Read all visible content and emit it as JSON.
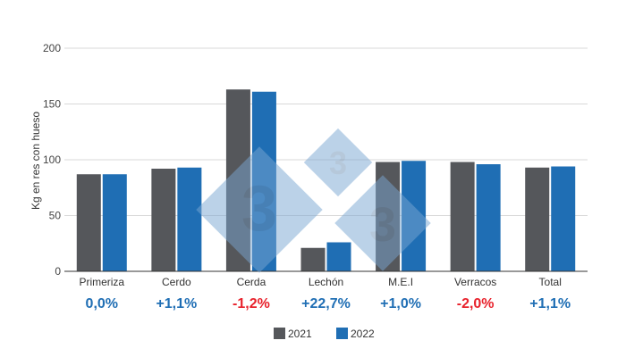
{
  "chart_data": {
    "type": "bar",
    "title": "",
    "xlabel": "",
    "ylabel": "Kg en res con hueso",
    "ylim": [
      0,
      200
    ],
    "yticks": [
      0,
      50,
      100,
      150,
      200
    ],
    "grid": true,
    "legend_position": "bottom",
    "categories": [
      "Primeriza",
      "Cerdo",
      "Cerda",
      "Lechón",
      "M.E.I",
      "Verracos",
      "Total"
    ],
    "series": [
      {
        "name": "2021",
        "color": "#55575b",
        "values": [
          87,
          92,
          163,
          21,
          98,
          98,
          93
        ]
      },
      {
        "name": "2022",
        "color": "#1f6eb4",
        "values": [
          87,
          93,
          161,
          26,
          99,
          96,
          94
        ]
      }
    ],
    "changes": [
      {
        "text": "0,0%",
        "color": "#1f6eb4"
      },
      {
        "text": "+1,1%",
        "color": "#1f6eb4"
      },
      {
        "text": "-1,2%",
        "color": "#e8212b"
      },
      {
        "text": "+22,7%",
        "color": "#1f6eb4"
      },
      {
        "text": "+1,0%",
        "color": "#1f6eb4"
      },
      {
        "text": "-2,0%",
        "color": "#e8212b"
      },
      {
        "text": "+1,1%",
        "color": "#1f6eb4"
      }
    ]
  },
  "watermark": {
    "icon": "333-logo-watermark",
    "color": "#7aa6d2"
  }
}
